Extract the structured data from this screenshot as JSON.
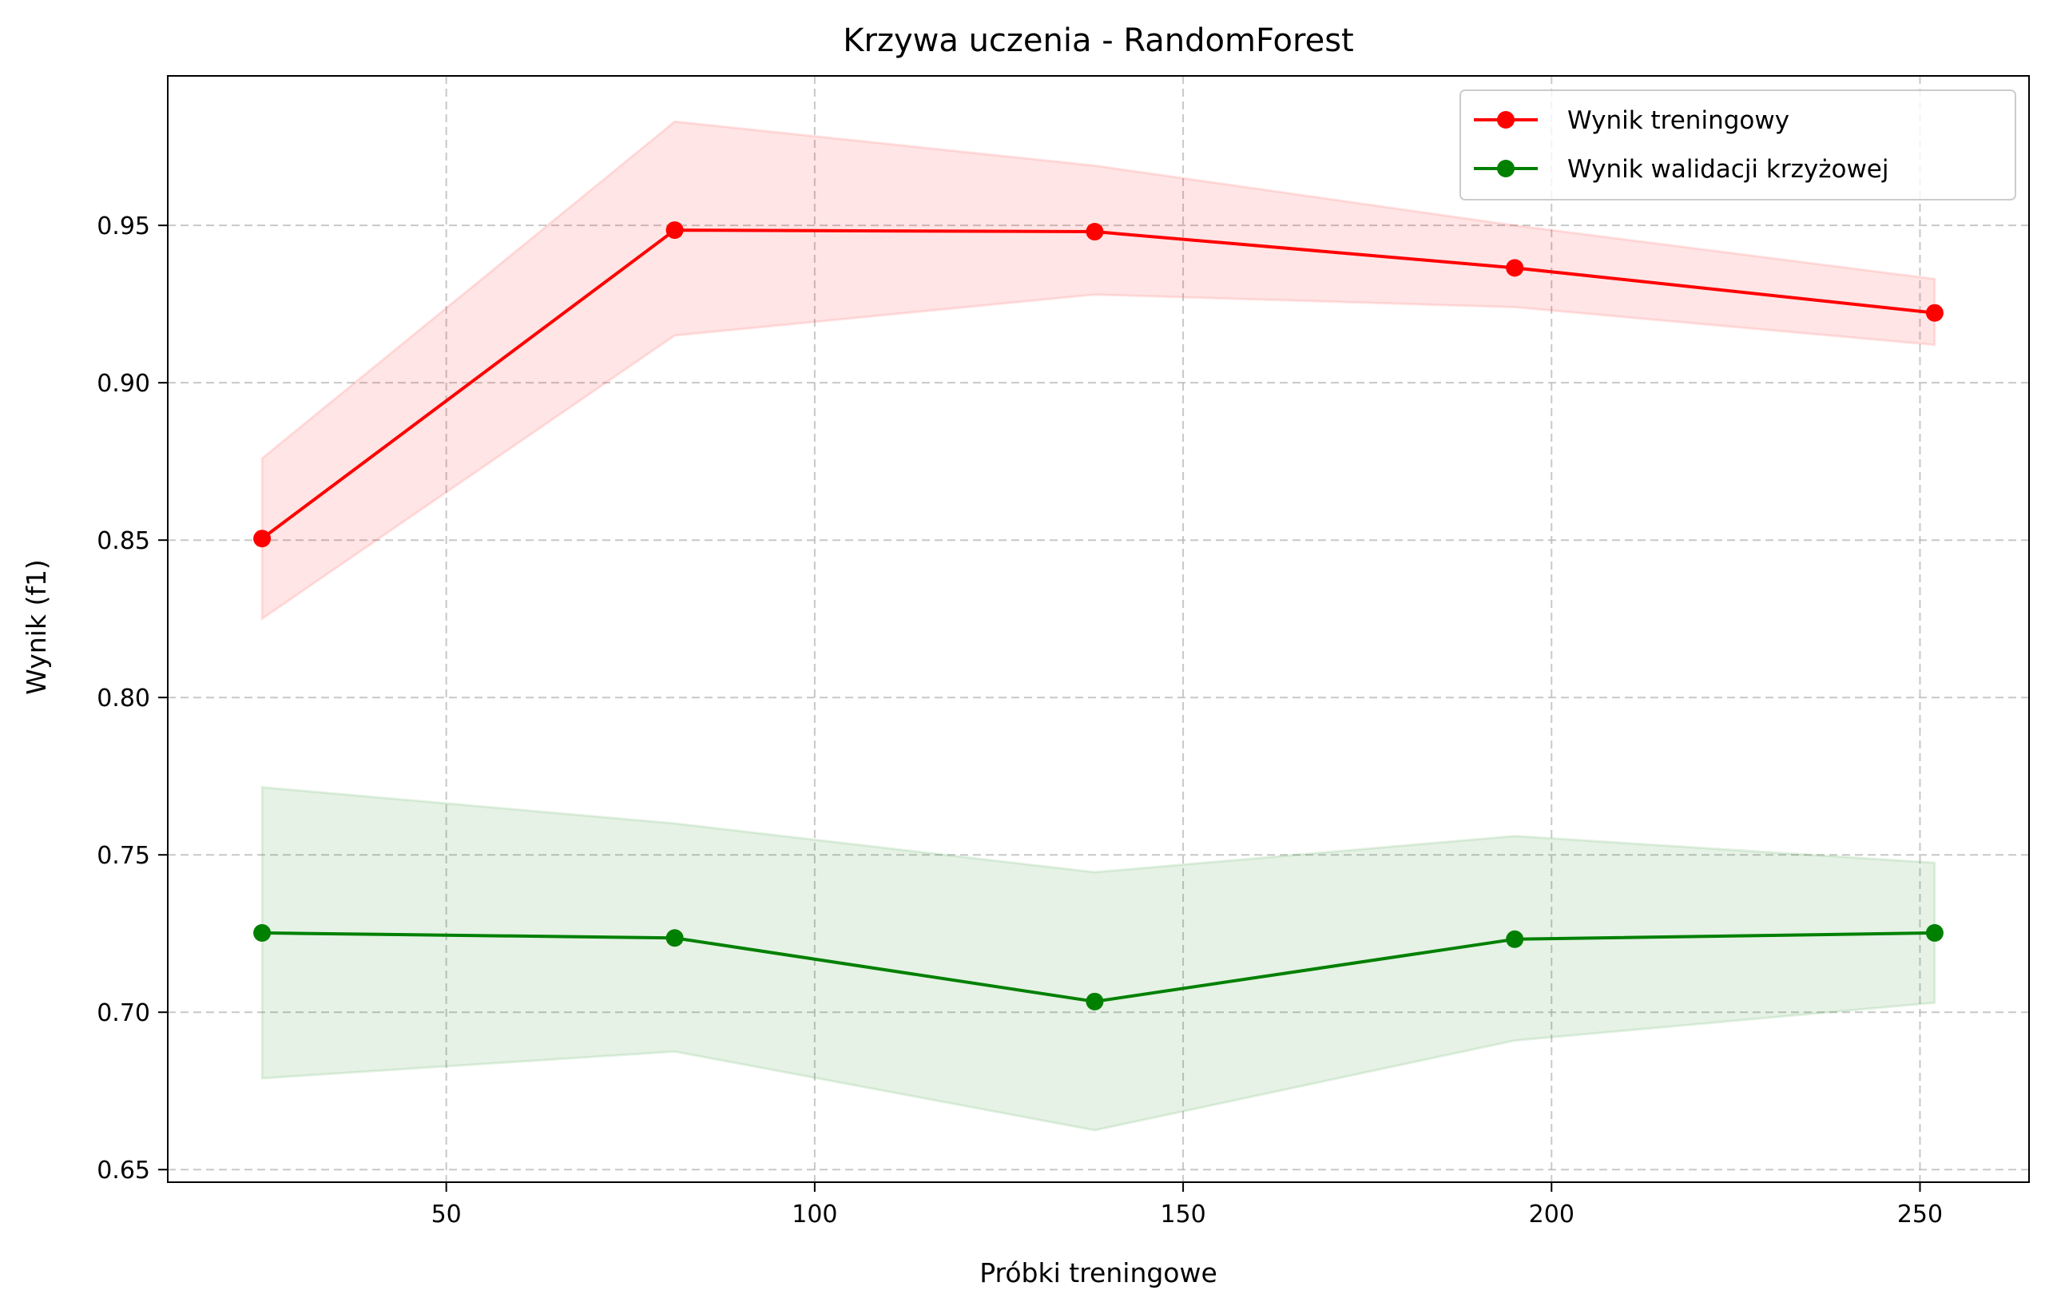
{
  "chart_data": {
    "type": "line",
    "title": "Krzywa uczenia - RandomForest",
    "xlabel": "Próbki treningowe",
    "ylabel": "Wynik (f1)",
    "x": [
      25,
      81,
      138,
      195,
      252
    ],
    "xlim": [
      12.2,
      264.8
    ],
    "ylim": [
      0.646,
      0.9975
    ],
    "xticks": [
      50,
      100,
      150,
      200,
      250
    ],
    "xtick_labels": [
      "50",
      "100",
      "150",
      "200",
      "250"
    ],
    "yticks": [
      0.65,
      0.7,
      0.75,
      0.8,
      0.85,
      0.9,
      0.95
    ],
    "ytick_labels": [
      "0.65",
      "0.70",
      "0.75",
      "0.80",
      "0.85",
      "0.90",
      "0.95"
    ],
    "grid": true,
    "legend_position": "top-right",
    "series": [
      {
        "name": "Wynik treningowy",
        "color": "#ff0000",
        "band_color": "#ff0000",
        "values": [
          0.8505,
          0.9485,
          0.948,
          0.9365,
          0.9222
        ],
        "upper": [
          0.876,
          0.983,
          0.969,
          0.95,
          0.933
        ],
        "lower": [
          0.825,
          0.915,
          0.928,
          0.924,
          0.912
        ]
      },
      {
        "name": "Wynik walidacji krzyżowej",
        "color": "#008000",
        "band_color": "#008000",
        "values": [
          0.7252,
          0.7236,
          0.7034,
          0.7232,
          0.7252
        ],
        "upper": [
          0.7715,
          0.76,
          0.7445,
          0.756,
          0.7475
        ],
        "lower": [
          0.679,
          0.6875,
          0.6625,
          0.691,
          0.703
        ]
      }
    ]
  }
}
